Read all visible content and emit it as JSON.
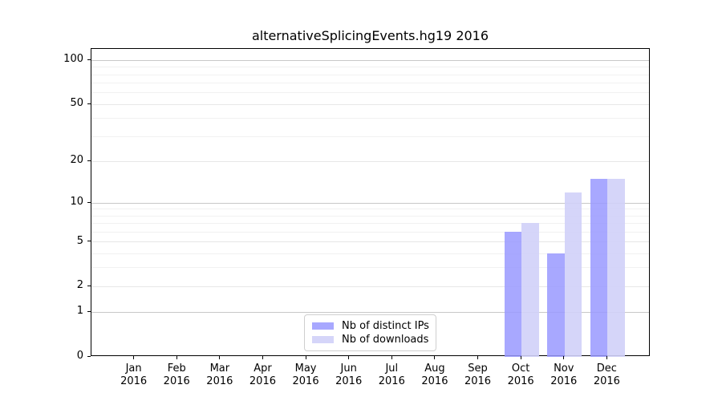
{
  "chart_data": {
    "type": "bar",
    "title": "alternativeSplicingEvents.hg19 2016",
    "categories": [
      "Jan",
      "Feb",
      "Mar",
      "Apr",
      "May",
      "Jun",
      "Jul",
      "Aug",
      "Sep",
      "Oct",
      "Nov",
      "Dec"
    ],
    "year": "2016",
    "series": [
      {
        "name": "Nb of distinct IPs",
        "color": "#9999FFD9",
        "values": [
          0,
          0,
          0,
          0,
          0,
          0,
          0,
          0,
          0,
          6,
          4,
          15
        ]
      },
      {
        "name": "Nb of downloads",
        "color": "#D0D0F8E6",
        "values": [
          0,
          0,
          0,
          0,
          0,
          0,
          0,
          0,
          0,
          7,
          12,
          15
        ]
      }
    ],
    "yscale": "log1p",
    "ylim": [
      0,
      120
    ],
    "yticks": [
      0,
      1,
      2,
      5,
      10,
      20,
      50,
      100
    ],
    "yticks_minor": [
      3,
      4,
      6,
      7,
      8,
      9,
      30,
      40,
      60,
      70,
      80,
      90
    ],
    "grid": true,
    "legend_position": "lower center",
    "axis_color": "#000000",
    "grid_major_color": "#c8c8c8",
    "grid_mid_color": "#e7e7e7",
    "grid_minor_color": "#f1f1f1"
  }
}
